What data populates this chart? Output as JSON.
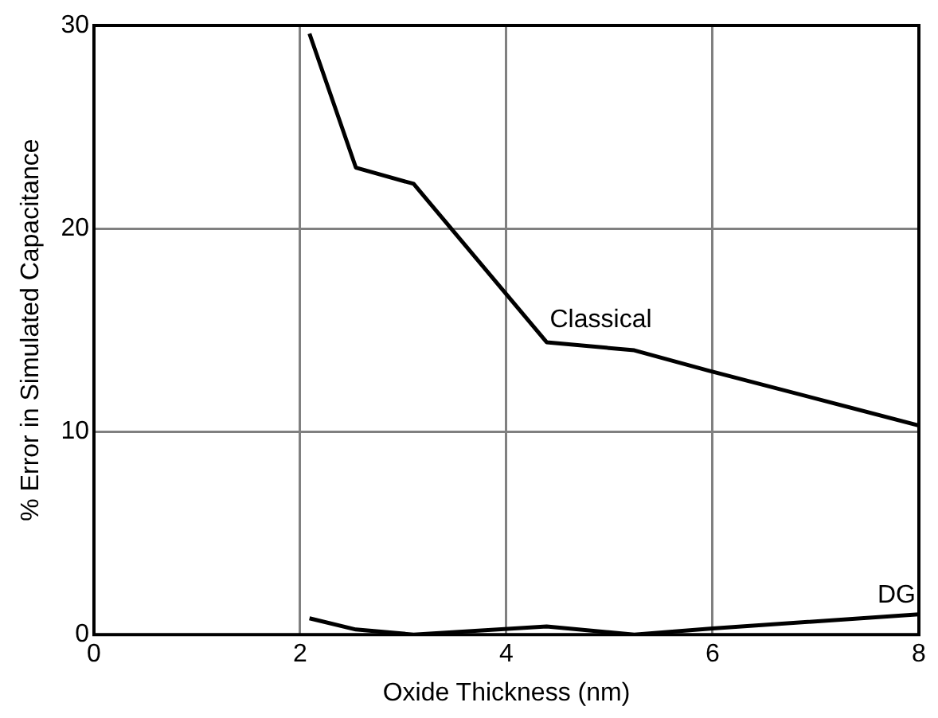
{
  "chart_data": {
    "type": "line",
    "xlabel": "Oxide Thickness (nm)",
    "ylabel": "% Error in Simulated Capacitance",
    "xlim": [
      0,
      8
    ],
    "xticks": [
      0,
      2,
      4,
      6,
      8
    ],
    "ylim": [
      0,
      30
    ],
    "yticks": [
      0,
      10,
      20,
      30
    ],
    "grid": true,
    "legend": false,
    "marker": "none",
    "line_style": "solid",
    "series": [
      {
        "name": "Classical",
        "color": "#000000",
        "x": [
          2.09,
          2.54,
          3.1,
          4.39,
          5.24,
          5.96,
          8
        ],
        "values": [
          29.6,
          23.0,
          22.2,
          14.4,
          14.0,
          13.0,
          10.3
        ]
      },
      {
        "name": "DG",
        "color": "#000000",
        "x": [
          2.09,
          2.54,
          3.1,
          4.39,
          5.24,
          6,
          8
        ],
        "values": [
          0.8,
          0.25,
          0,
          0.4,
          0,
          0.3,
          1.0
        ]
      }
    ]
  }
}
